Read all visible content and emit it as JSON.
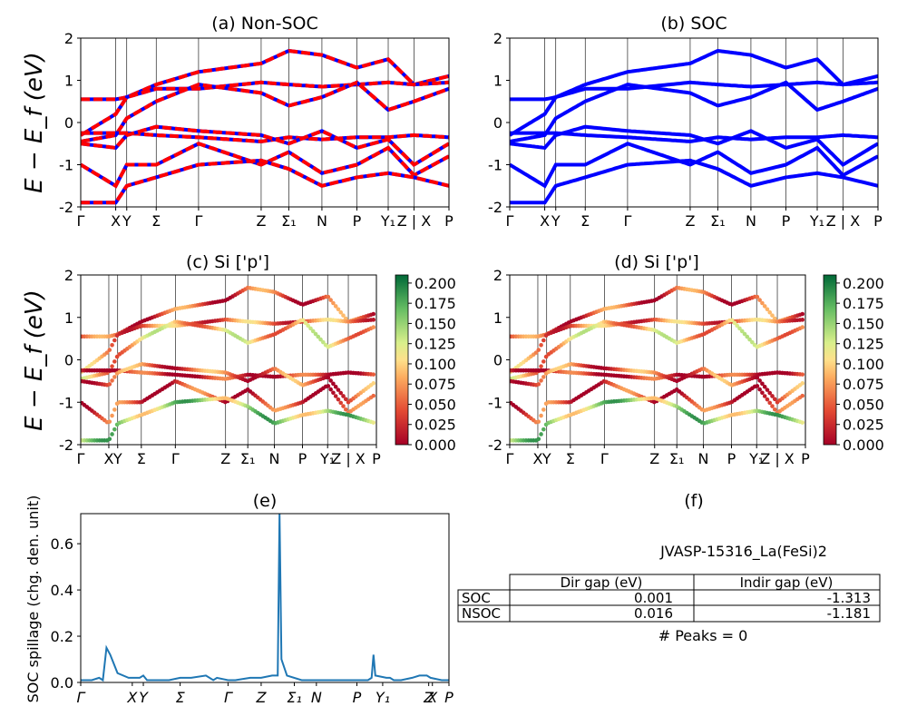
{
  "figure": {
    "ylabel_energy": "E − E_f (eV)",
    "colors": {
      "nsoc": "#ff0000",
      "soc": "#0000ff",
      "spillage": "#1f77b4"
    }
  },
  "kpath": {
    "labels": [
      "Γ",
      "X",
      "Y",
      "Σ",
      "Γ",
      "Z",
      "Σ₁",
      "N",
      "P",
      "Y₁",
      "Z | X",
      "P"
    ],
    "pos": [
      0,
      0.095,
      0.125,
      0.205,
      0.32,
      0.49,
      0.565,
      0.655,
      0.75,
      0.835,
      0.905,
      1.0
    ]
  },
  "panels": {
    "a": {
      "title": "(a) Non-SOC"
    },
    "b": {
      "title": "(b) SOC"
    },
    "c": {
      "title": "(c)  Si ['p']"
    },
    "d": {
      "title": "(d) Si ['p']"
    },
    "e": {
      "title": "(e)"
    },
    "f": {
      "title": "(f)"
    }
  },
  "chart_data": [
    {
      "id": "a",
      "type": "line",
      "title": "(a) Non-SOC",
      "ylabel": "E − E_f (eV)",
      "ylim": [
        -2,
        2
      ],
      "yticks": [
        -2,
        -1,
        0,
        1,
        2
      ],
      "xticks": [
        "Γ",
        "X",
        "Y",
        "Σ",
        "Γ",
        "Z",
        "Σ₁",
        "N",
        "P",
        "Y₁",
        "Z | X",
        "P"
      ],
      "series": [
        {
          "values": [
            0.55,
            0.55,
            0.6,
            0.9,
            1.2,
            1.4,
            1.7,
            1.6,
            1.3,
            1.5,
            0.9,
            1.1
          ]
        },
        {
          "values": [
            -0.3,
            0.2,
            0.6,
            0.8,
            0.8,
            0.95,
            0.9,
            0.85,
            0.9,
            0.95,
            0.9,
            0.95
          ]
        },
        {
          "values": [
            -0.45,
            -0.3,
            0.1,
            0.5,
            0.9,
            0.7,
            0.4,
            0.6,
            0.95,
            0.3,
            0.5,
            0.8
          ]
        },
        {
          "values": [
            -0.25,
            -0.25,
            -0.25,
            -0.3,
            -0.35,
            -0.45,
            -0.35,
            -0.4,
            -0.35,
            -0.35,
            -0.3,
            -0.35
          ]
        },
        {
          "values": [
            -0.5,
            -0.6,
            -0.3,
            -0.1,
            -0.2,
            -0.3,
            -0.5,
            -0.2,
            -0.6,
            -0.4,
            -1.0,
            -0.5
          ]
        },
        {
          "values": [
            -1.0,
            -1.5,
            -1.0,
            -1.0,
            -0.5,
            -1.0,
            -0.7,
            -1.2,
            -1.0,
            -0.6,
            -1.25,
            -0.8
          ]
        },
        {
          "values": [
            -1.9,
            -1.9,
            -1.5,
            -1.3,
            -1.0,
            -0.9,
            -1.1,
            -1.5,
            -1.3,
            -1.2,
            -1.3,
            -1.5
          ]
        }
      ]
    },
    {
      "id": "b",
      "type": "line",
      "title": "(b) SOC",
      "ylim": [
        -2,
        2
      ],
      "yticks": [
        -2,
        -1,
        0,
        1,
        2
      ],
      "xticks": [
        "Γ",
        "X",
        "Y",
        "Σ",
        "Γ",
        "Z",
        "Σ₁",
        "N",
        "P",
        "Y₁",
        "Z | X",
        "P"
      ],
      "series": [
        {
          "values": [
            0.55,
            0.55,
            0.6,
            0.9,
            1.2,
            1.4,
            1.7,
            1.6,
            1.3,
            1.5,
            0.9,
            1.1
          ]
        },
        {
          "values": [
            -0.3,
            0.2,
            0.6,
            0.8,
            0.8,
            0.95,
            0.9,
            0.85,
            0.9,
            0.95,
            0.9,
            0.95
          ]
        },
        {
          "values": [
            -0.45,
            -0.3,
            0.1,
            0.5,
            0.9,
            0.7,
            0.4,
            0.6,
            0.95,
            0.3,
            0.5,
            0.8
          ]
        },
        {
          "values": [
            -0.25,
            -0.25,
            -0.25,
            -0.3,
            -0.35,
            -0.45,
            -0.35,
            -0.4,
            -0.35,
            -0.35,
            -0.3,
            -0.35
          ]
        },
        {
          "values": [
            -0.5,
            -0.6,
            -0.3,
            -0.1,
            -0.2,
            -0.3,
            -0.5,
            -0.2,
            -0.6,
            -0.4,
            -1.0,
            -0.5
          ]
        },
        {
          "values": [
            -1.0,
            -1.5,
            -1.0,
            -1.0,
            -0.5,
            -1.0,
            -0.7,
            -1.2,
            -1.0,
            -0.6,
            -1.25,
            -0.8
          ]
        },
        {
          "values": [
            -1.9,
            -1.9,
            -1.5,
            -1.3,
            -1.0,
            -0.9,
            -1.1,
            -1.5,
            -1.3,
            -1.2,
            -1.3,
            -1.5
          ]
        }
      ]
    },
    {
      "id": "c",
      "type": "scatter",
      "title": "(c)  Si ['p']",
      "ylabel": "E − E_f (eV)",
      "ylim": [
        -2,
        2
      ],
      "yticks": [
        -2,
        -1,
        0,
        1,
        2
      ],
      "xticks": [
        "Γ",
        "X",
        "Y",
        "Σ",
        "Γ",
        "Z",
        "Σ₁",
        "N",
        "P",
        "Y₁",
        "Z | X",
        "P"
      ],
      "colorbar": {
        "min": 0.0,
        "max": 0.21,
        "ticks": [
          "0.000",
          "0.025",
          "0.050",
          "0.075",
          "0.100",
          "0.125",
          "0.150",
          "0.175",
          "0.200"
        ]
      },
      "band_weights": [
        0.04,
        0.06,
        0.09,
        0.02,
        0.05,
        0.03,
        0.14
      ]
    },
    {
      "id": "d",
      "type": "scatter",
      "title": "(d) Si ['p']",
      "ylim": [
        -2,
        2
      ],
      "yticks": [
        -2,
        -1,
        0,
        1,
        2
      ],
      "xticks": [
        "Γ",
        "X",
        "Y",
        "Σ",
        "Γ",
        "Z",
        "Σ₁",
        "N",
        "P",
        "Y₁",
        "Z | X",
        "P"
      ],
      "colorbar": {
        "min": 0.0,
        "max": 0.21,
        "ticks": [
          "0.000",
          "0.025",
          "0.050",
          "0.075",
          "0.100",
          "0.125",
          "0.150",
          "0.175",
          "0.200"
        ]
      },
      "band_weights": [
        0.04,
        0.06,
        0.09,
        0.02,
        0.05,
        0.03,
        0.14
      ]
    },
    {
      "id": "e",
      "type": "line",
      "title": "(e)",
      "ylabel": "SOC spillage (chg. den. unit)",
      "ylim": [
        0,
        0.73
      ],
      "yticks": [
        "0.0",
        "0.2",
        "0.4",
        "0.6"
      ],
      "xticks": [
        "Γ",
        "X",
        "Y",
        "Σ",
        "Γ",
        "Z",
        "Σ₁",
        "N",
        "P",
        "Y₁",
        "Z",
        "X",
        "P"
      ],
      "xtick_pos": [
        0,
        0.14,
        0.17,
        0.27,
        0.4,
        0.49,
        0.58,
        0.64,
        0.75,
        0.82,
        0.945,
        0.955,
        1.0
      ],
      "x": [
        0,
        0.03,
        0.05,
        0.06,
        0.07,
        0.08,
        0.1,
        0.13,
        0.16,
        0.17,
        0.18,
        0.2,
        0.24,
        0.27,
        0.28,
        0.3,
        0.34,
        0.36,
        0.37,
        0.4,
        0.42,
        0.46,
        0.49,
        0.52,
        0.535,
        0.54,
        0.545,
        0.56,
        0.6,
        0.65,
        0.7,
        0.75,
        0.78,
        0.79,
        0.795,
        0.8,
        0.83,
        0.84,
        0.85,
        0.87,
        0.9,
        0.92,
        0.94,
        0.95,
        0.98,
        1.0
      ],
      "y": [
        0.01,
        0.01,
        0.02,
        0.01,
        0.15,
        0.12,
        0.04,
        0.02,
        0.02,
        0.03,
        0.01,
        0.01,
        0.01,
        0.02,
        0.02,
        0.02,
        0.03,
        0.01,
        0.02,
        0.01,
        0.01,
        0.02,
        0.02,
        0.03,
        0.03,
        0.73,
        0.1,
        0.03,
        0.01,
        0.01,
        0.01,
        0.01,
        0.01,
        0.02,
        0.12,
        0.03,
        0.02,
        0.02,
        0.01,
        0.01,
        0.02,
        0.03,
        0.03,
        0.02,
        0.01,
        0.01
      ]
    }
  ],
  "table": {
    "material": "JVASP-15316_La(FeSi)2",
    "headers": [
      "",
      "Dir gap (eV)",
      "Indir gap (eV)"
    ],
    "rows": [
      {
        "label": "SOC",
        "dir": "0.001",
        "indir": "-1.313"
      },
      {
        "label": "NSOC",
        "dir": "0.016",
        "indir": "-1.181"
      }
    ],
    "peaks": "# Peaks = 0"
  }
}
